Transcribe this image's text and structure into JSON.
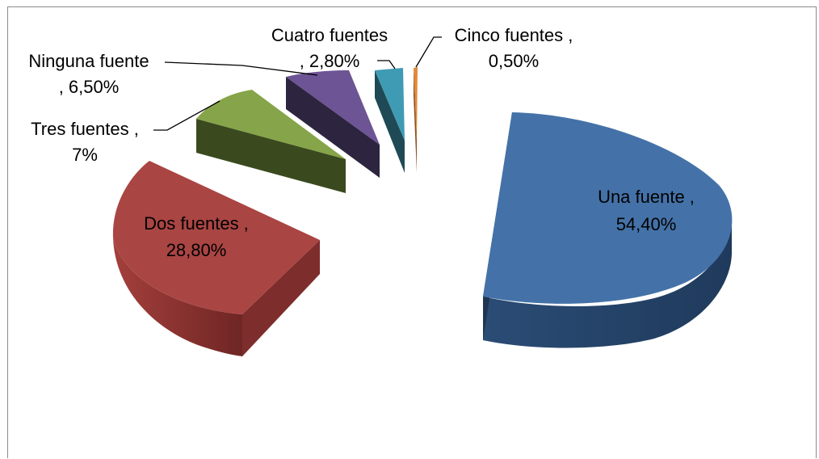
{
  "chart_data": {
    "type": "pie",
    "title": "",
    "style": "3d-exploded",
    "legend": "none",
    "slices": [
      {
        "name": "Una fuente",
        "value": 54.4,
        "display": "54,40%",
        "color": "#4472a8",
        "label_line1": "Una fuente ,",
        "label_line2": "54,40%"
      },
      {
        "name": "Dos fuentes",
        "value": 28.8,
        "display": "28,80%",
        "color": "#a94543",
        "label_line1": "Dos fuentes ,",
        "label_line2": "28,80%"
      },
      {
        "name": "Tres fuentes",
        "value": 7,
        "display": "7%",
        "color": "#86a449",
        "label_line1": "Tres fuentes ,",
        "label_line2": "7%"
      },
      {
        "name": "Ninguna fuente",
        "value": 6.5,
        "display": "6,50%",
        "color": "#6d5495",
        "label_line1": "Ninguna fuente",
        "label_line2": ", 6,50%"
      },
      {
        "name": "Cuatro fuentes",
        "value": 2.8,
        "display": "2,80%",
        "color": "#3f9bb4",
        "label_line1": "Cuatro fuentes",
        "label_line2": ", 2,80%"
      },
      {
        "name": "Cinco fuentes",
        "value": 0.5,
        "display": "0,50%",
        "color": "#e38a3b",
        "label_line1": "Cinco fuentes ,",
        "label_line2": "0,50%"
      }
    ]
  }
}
